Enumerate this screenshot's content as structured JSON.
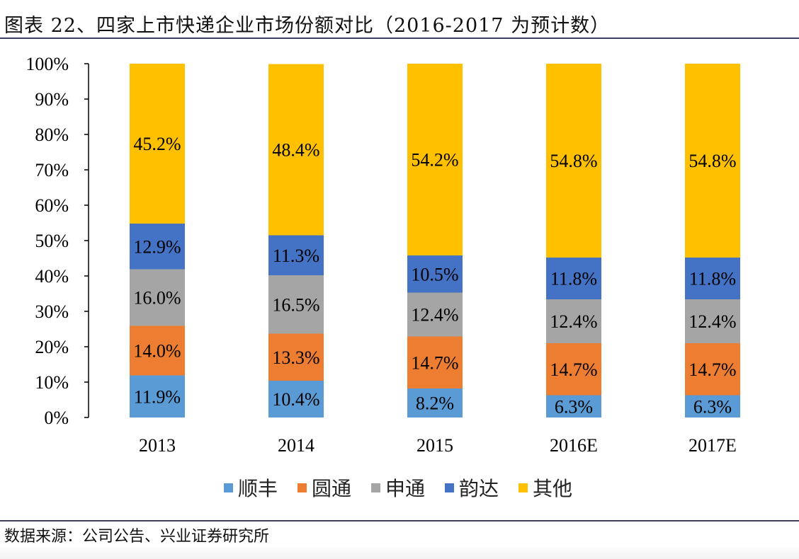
{
  "title": "图表 22、四家上市快递企业市场份额对比（2016-2017 为预计数）",
  "source": "数据来源：公司公告、兴业证券研究所",
  "chart_data": {
    "type": "bar",
    "stacked": true,
    "percent_stacked": true,
    "categories": [
      "2013",
      "2014",
      "2015",
      "2016E",
      "2017E"
    ],
    "series": [
      {
        "name": "顺丰",
        "color": "#5B9BD5",
        "values": [
          11.9,
          10.4,
          8.2,
          6.3,
          6.3
        ]
      },
      {
        "name": "圆通",
        "color": "#ED7D31",
        "values": [
          14.0,
          13.3,
          14.7,
          14.7,
          14.7
        ]
      },
      {
        "name": "申通",
        "color": "#A5A5A5",
        "values": [
          16.0,
          16.5,
          12.4,
          12.4,
          12.4
        ]
      },
      {
        "name": "韵达",
        "color": "#4472C4",
        "values": [
          12.9,
          11.3,
          10.5,
          11.8,
          11.8
        ]
      },
      {
        "name": "其他",
        "color": "#FFC000",
        "values": [
          45.2,
          48.4,
          54.2,
          54.8,
          54.8
        ]
      }
    ],
    "ylim": [
      0,
      100
    ],
    "yticks": [
      "0%",
      "10%",
      "20%",
      "30%",
      "40%",
      "50%",
      "60%",
      "70%",
      "80%",
      "90%",
      "100%"
    ],
    "grid": false,
    "legend": "bottom",
    "xlabel": "",
    "ylabel": ""
  }
}
